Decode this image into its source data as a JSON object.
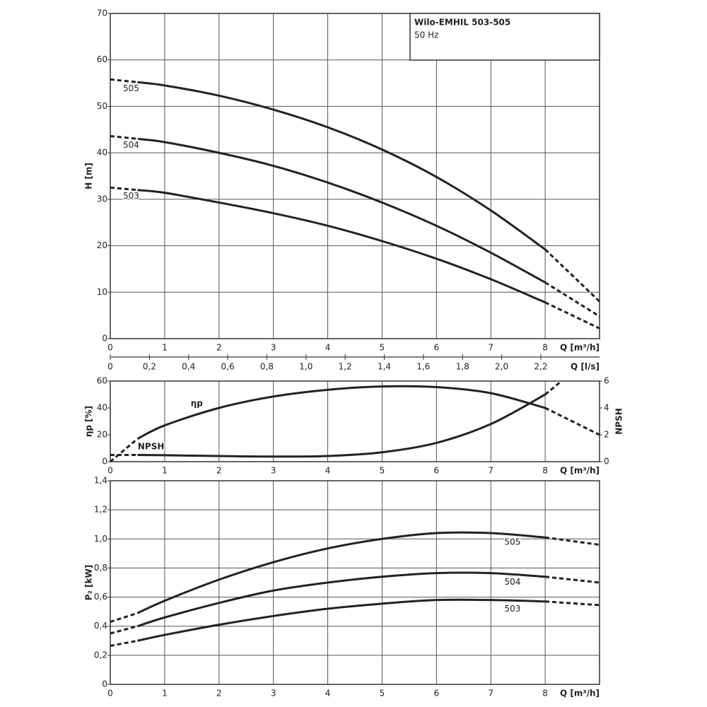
{
  "chart_data": [
    {
      "type": "line",
      "title": "Wilo-EMHIL 503-505",
      "subtitle": "50 Hz",
      "ylabel": "H [m]",
      "xlabel": "Q [m³/h]",
      "grid": "both",
      "solid_xlim": [
        0.5,
        8
      ],
      "xlim": [
        0,
        9
      ],
      "xticks": [
        0,
        1,
        2,
        3,
        4,
        5,
        6,
        7,
        8
      ],
      "ylim": [
        0,
        70
      ],
      "yticks": [
        0,
        10,
        20,
        30,
        40,
        50,
        60,
        70
      ],
      "x2label": "Q [l/s]",
      "x2lim": [
        0,
        2.5
      ],
      "x2ticks": [
        0,
        {
          "value": 0.2,
          "label": "0,2"
        },
        {
          "value": 0.4,
          "label": "0,4"
        },
        {
          "value": 0.6,
          "label": "0,6"
        },
        {
          "value": 0.8,
          "label": "0,8"
        },
        {
          "value": 1.0,
          "label": "1,0"
        },
        {
          "value": 1.2,
          "label": "1,2"
        },
        {
          "value": 1.4,
          "label": "1,4"
        },
        {
          "value": 1.6,
          "label": "1,6"
        },
        {
          "value": 1.8,
          "label": "1,8"
        },
        {
          "value": 2.0,
          "label": "2,0"
        },
        {
          "value": 2.2,
          "label": "2,2"
        }
      ],
      "x": [
        0,
        0.5,
        1,
        2,
        3,
        4,
        5,
        6,
        7,
        8,
        9
      ],
      "series": [
        {
          "name": "505",
          "color": "#222222",
          "values": [
            55.8,
            55.2,
            54.5,
            52.3,
            49.3,
            45.5,
            40.7,
            34.8,
            27.6,
            19.2,
            8.0
          ]
        },
        {
          "name": "504",
          "color": "#222222",
          "values": [
            43.6,
            43.0,
            42.3,
            40.0,
            37.2,
            33.6,
            29.3,
            24.3,
            18.5,
            12.1,
            4.8
          ]
        },
        {
          "name": "503",
          "color": "#222222",
          "values": [
            32.5,
            32.0,
            31.4,
            29.3,
            27.0,
            24.3,
            21.0,
            17.2,
            12.8,
            7.8,
            2.2
          ]
        }
      ]
    },
    {
      "type": "line",
      "ylabel": "ηp [%]",
      "y2label": "NPSH",
      "xlabel": "Q [m³/h]",
      "grid": "x",
      "solid_xlim": [
        0.5,
        8
      ],
      "xlim": [
        0,
        9
      ],
      "xticks": [
        0,
        1,
        2,
        3,
        4,
        5,
        6,
        7,
        8
      ],
      "ylim": [
        0,
        60
      ],
      "yticks": [
        0,
        20,
        40,
        60
      ],
      "y2lim": [
        0,
        6
      ],
      "y2ticks": [
        0,
        2,
        4,
        6
      ],
      "series": [
        {
          "name": "ηp",
          "color": "#222222",
          "x": [
            0,
            0.5,
            1,
            2,
            3,
            4,
            5,
            6,
            7,
            8,
            9
          ],
          "values": [
            0,
            17,
            27,
            40,
            48.5,
            53.5,
            56,
            55.5,
            51,
            40,
            20
          ]
        },
        {
          "name": "NPSH",
          "color": "#222222",
          "axis": "y2",
          "x": [
            0,
            0.5,
            1,
            2,
            3,
            4,
            5,
            6,
            7,
            8,
            8.3
          ],
          "values": [
            0.5,
            0.5,
            0.48,
            0.42,
            0.38,
            0.42,
            0.7,
            1.4,
            2.8,
            5.0,
            6.0
          ]
        }
      ]
    },
    {
      "type": "line",
      "ylabel": "P₂ [kW]",
      "xlabel": "Q [m³/h]",
      "grid": "both",
      "solid_xlim": [
        0.5,
        8
      ],
      "xlim": [
        0,
        9
      ],
      "xticks": [
        0,
        1,
        2,
        3,
        4,
        5,
        6,
        7,
        8
      ],
      "ylim": [
        0,
        1.4
      ],
      "yticks": [
        0,
        {
          "value": 0.2,
          "label": "0,2"
        },
        {
          "value": 0.4,
          "label": "0,4"
        },
        {
          "value": 0.6,
          "label": "0,6"
        },
        {
          "value": 0.8,
          "label": "0,8"
        },
        {
          "value": 1.0,
          "label": "1,0"
        },
        {
          "value": 1.2,
          "label": "1,2"
        },
        {
          "value": 1.4,
          "label": "1,4"
        }
      ],
      "x": [
        0,
        0.5,
        1,
        2,
        3,
        4,
        5,
        6,
        7,
        8,
        9
      ],
      "series": [
        {
          "name": "505",
          "color": "#222222",
          "values": [
            0.43,
            0.49,
            0.575,
            0.72,
            0.84,
            0.935,
            1.0,
            1.04,
            1.04,
            1.01,
            0.96
          ]
        },
        {
          "name": "504",
          "color": "#222222",
          "values": [
            0.35,
            0.4,
            0.46,
            0.56,
            0.645,
            0.7,
            0.74,
            0.765,
            0.765,
            0.74,
            0.7
          ]
        },
        {
          "name": "503",
          "color": "#222222",
          "values": [
            0.265,
            0.3,
            0.34,
            0.41,
            0.47,
            0.52,
            0.555,
            0.58,
            0.58,
            0.57,
            0.545
          ]
        }
      ]
    }
  ]
}
